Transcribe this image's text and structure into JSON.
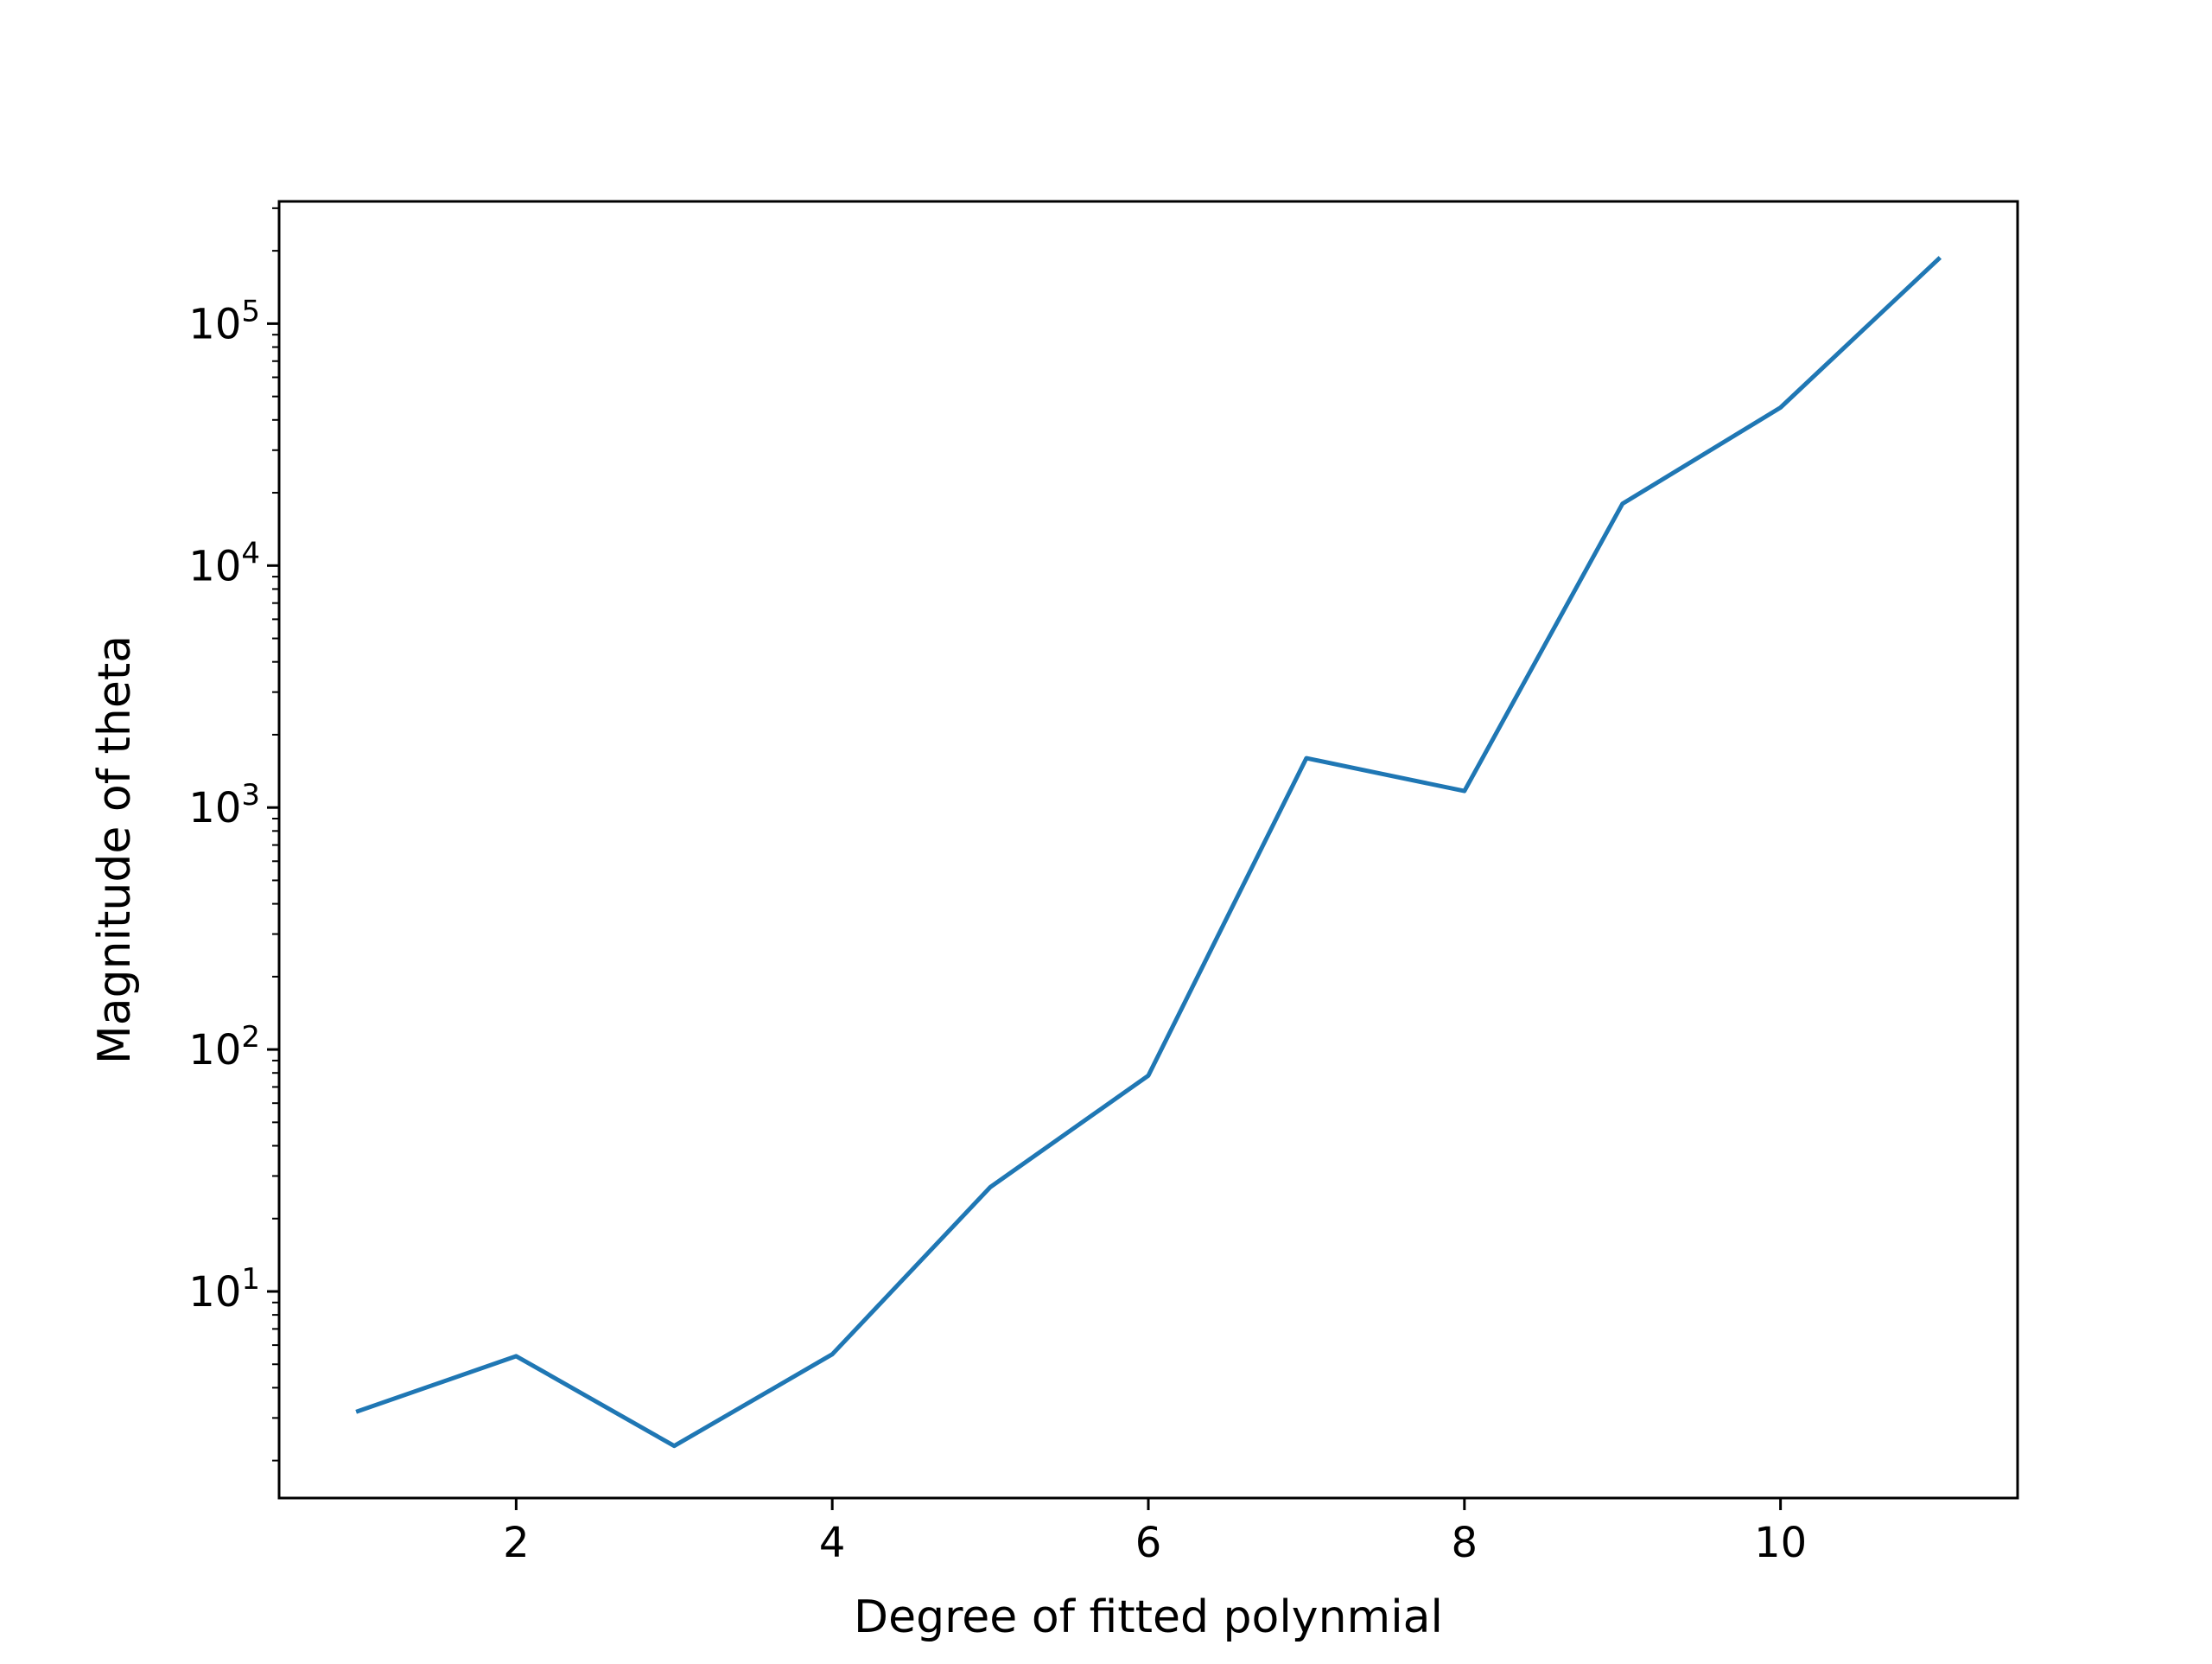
{
  "chart_data": {
    "type": "line",
    "title": "",
    "xlabel": "Degree of fitted polynmial",
    "ylabel": "Magnitude of theta",
    "yscale": "log",
    "xlim": [
      0.5,
      11.5
    ],
    "ylim": [
      1.4,
      320000
    ],
    "xticks": [
      2,
      4,
      6,
      8,
      10
    ],
    "xtick_labels": [
      "2",
      "4",
      "6",
      "8",
      "10"
    ],
    "yticks": [
      10,
      100,
      1000,
      10000,
      100000
    ],
    "ytick_labels": [
      {
        "base": "10",
        "exp": "1"
      },
      {
        "base": "10",
        "exp": "2"
      },
      {
        "base": "10",
        "exp": "3"
      },
      {
        "base": "10",
        "exp": "4"
      },
      {
        "base": "10",
        "exp": "5"
      }
    ],
    "grid": false,
    "legend": "none",
    "line_color": "#1f77b4",
    "series": [
      {
        "x": [
          1,
          2,
          3,
          4,
          5,
          6,
          7,
          8,
          9,
          10,
          11
        ],
        "values": [
          3.2,
          5.4,
          2.3,
          5.5,
          27,
          78,
          1600,
          1170,
          18000,
          45000,
          185000
        ]
      }
    ]
  }
}
